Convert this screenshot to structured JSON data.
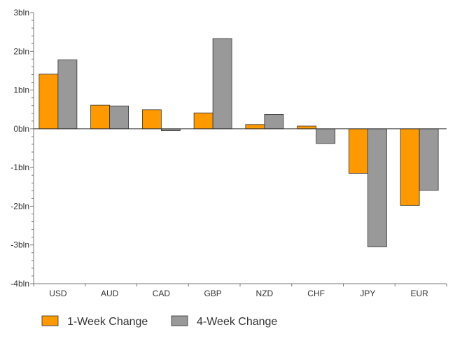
{
  "chart_data": {
    "type": "bar",
    "categories": [
      "USD",
      "AUD",
      "CAD",
      "GBP",
      "NZD",
      "CHF",
      "JPY",
      "EUR"
    ],
    "series": [
      {
        "name": "1-Week Change",
        "color": "#ff9900",
        "values": [
          1.41,
          0.61,
          0.49,
          0.41,
          0.11,
          0.07,
          -1.15,
          -1.98
        ]
      },
      {
        "name": "4-Week Change",
        "color": "#999999",
        "values": [
          1.78,
          0.59,
          -0.05,
          2.33,
          0.37,
          -0.38,
          -3.05,
          -1.59
        ]
      }
    ],
    "y_ticks": [
      "3bln",
      "2bln",
      "1bln",
      "0bln",
      "-1bln",
      "-2bln",
      "-3bln",
      "-4bln"
    ],
    "ylim": [
      -4,
      3
    ],
    "grid": false,
    "legend_position": "bottom-left",
    "title": "",
    "xlabel": "",
    "ylabel": ""
  }
}
